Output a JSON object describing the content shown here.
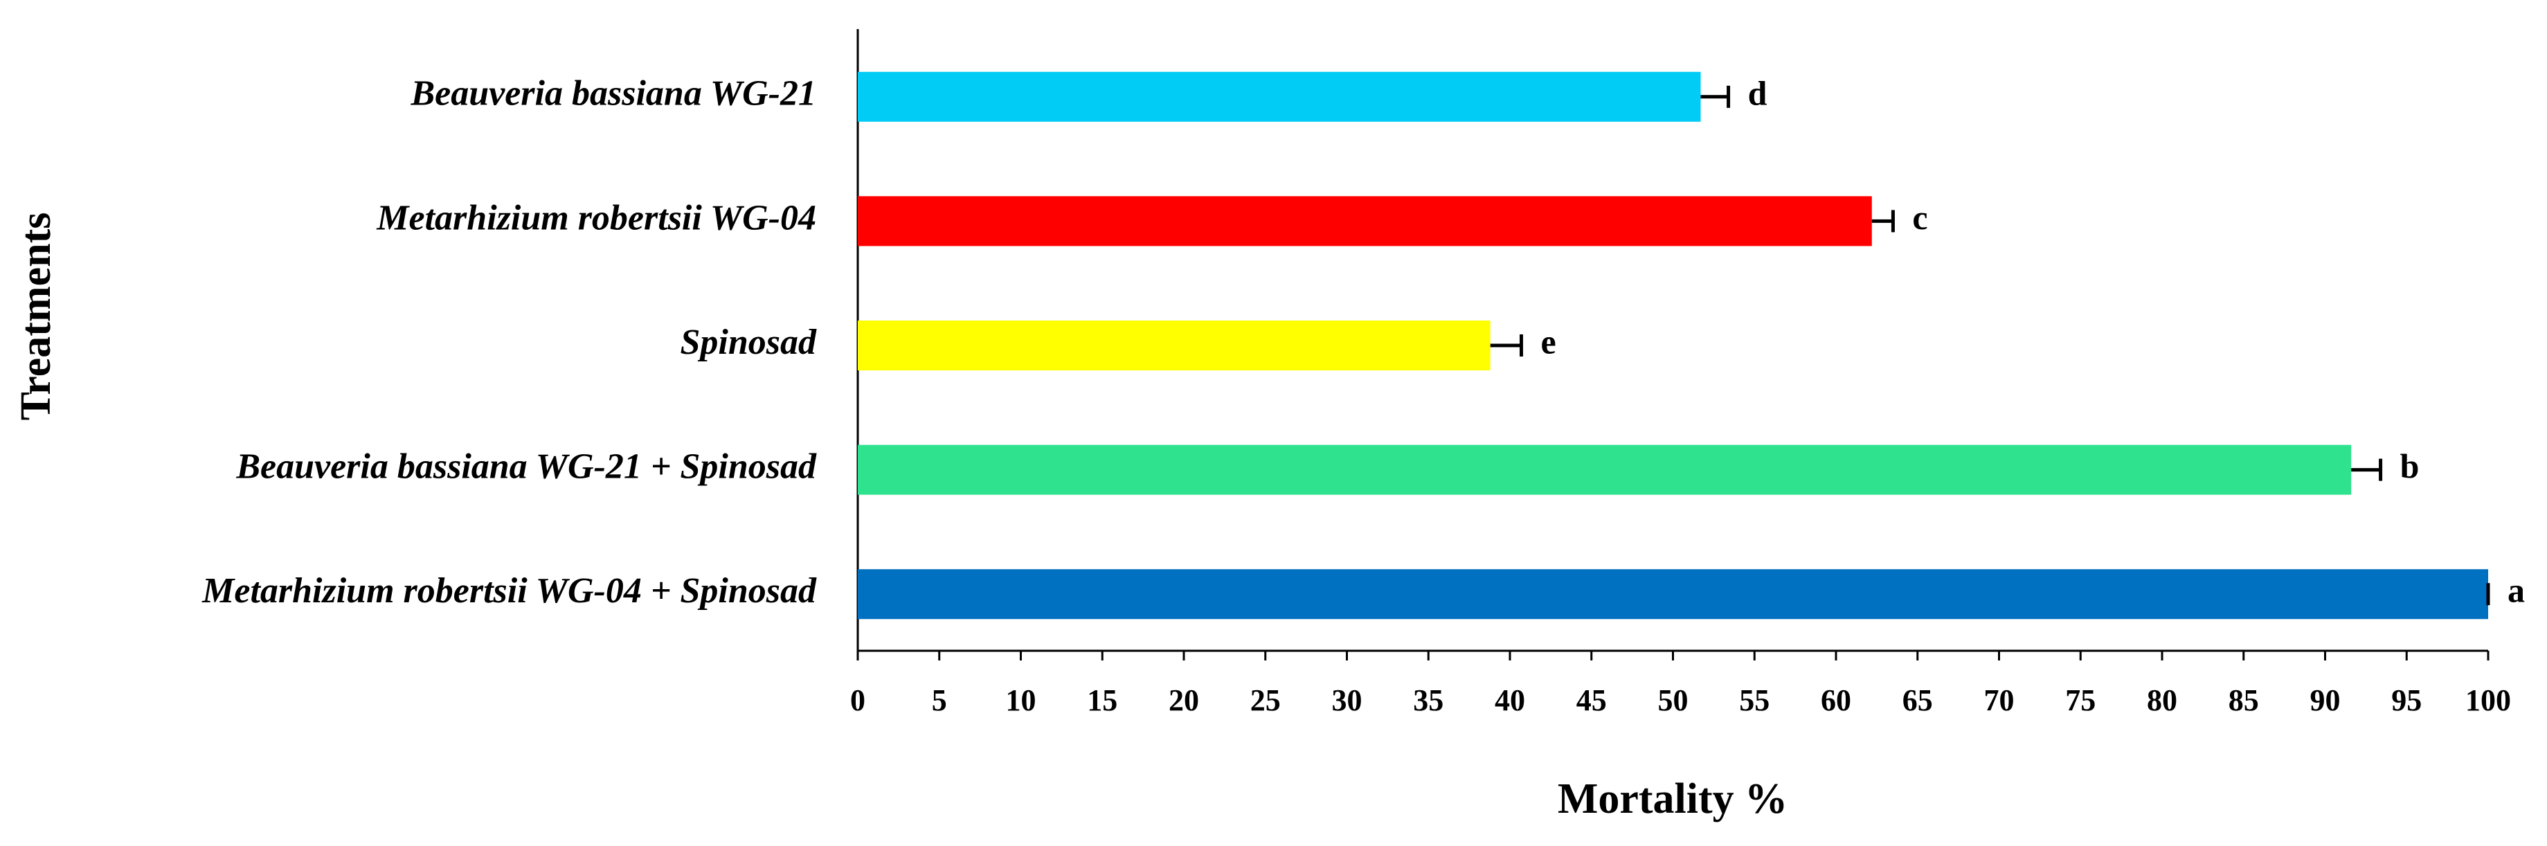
{
  "chart_data": {
    "type": "bar",
    "orientation": "horizontal",
    "categories": [
      "Beauveria bassiana WG-21",
      "Metarhizium robertsii WG-04",
      "Spinosad",
      "Beauveria bassiana WG-21 + Spinosad",
      "Metarhizium robertsii WG-04 + Spinosad"
    ],
    "values": [
      51.7,
      62.2,
      38.8,
      91.6,
      100
    ],
    "errors": [
      1.7,
      1.3,
      1.9,
      1.8,
      0
    ],
    "letters": [
      "d",
      "c",
      "e",
      "b",
      "a"
    ],
    "colors": [
      "#00ccf5",
      "#ff0000",
      "#ffff00",
      "#2ee28e",
      "#0070c0"
    ],
    "xlabel": "Mortality %",
    "ylabel": "Treatments",
    "xlim": [
      0,
      100
    ],
    "xticks": [
      0,
      5,
      10,
      15,
      20,
      25,
      30,
      35,
      40,
      45,
      50,
      55,
      60,
      65,
      70,
      75,
      80,
      85,
      90,
      95,
      100
    ],
    "grid": false
  }
}
